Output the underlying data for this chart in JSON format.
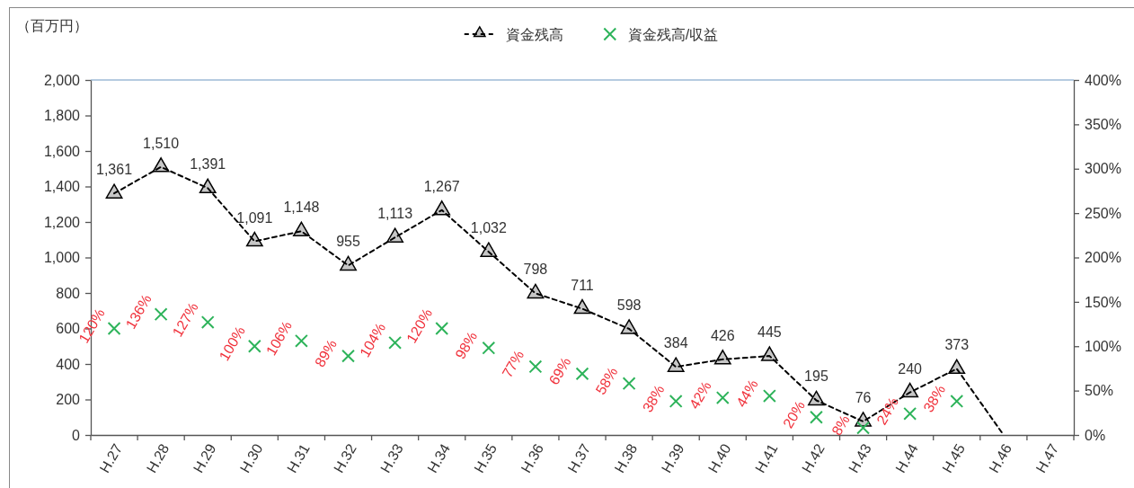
{
  "chart_data": {
    "type": "line",
    "ylabel": "（百万円）",
    "categories": [
      "H.27",
      "H.28",
      "H.29",
      "H.30",
      "H.31",
      "H.32",
      "H.33",
      "H.34",
      "H.35",
      "H.36",
      "H.37",
      "H.38",
      "H.39",
      "H.40",
      "H.41",
      "H.42",
      "H.43",
      "H.44",
      "H.45",
      "H.46",
      "H.47"
    ],
    "series": [
      {
        "name": "資金残高",
        "color": "#000000",
        "marker": "triangle",
        "line_style": "dashed",
        "values": [
          1361,
          1510,
          1391,
          1091,
          1148,
          955,
          1113,
          1267,
          1032,
          798,
          711,
          598,
          384,
          426,
          445,
          195,
          76,
          240,
          373,
          0,
          null
        ],
        "value_labels": [
          "1,361",
          "1,510",
          "1,391",
          "1,091",
          "1,148",
          "955",
          "1,113",
          "1,267",
          "1,032",
          "798",
          "711",
          "598",
          "384",
          "426",
          "445",
          "195",
          "76",
          "240",
          "373",
          null,
          null
        ]
      },
      {
        "name": "資金残高/収益",
        "type": "scatter",
        "axis": "y2",
        "color": "#2db35a",
        "marker": "cross",
        "values": [
          120,
          136,
          127,
          100,
          106,
          89,
          104,
          120,
          98,
          77,
          69,
          58,
          38,
          42,
          44,
          20,
          8,
          24,
          38,
          null,
          null
        ],
        "value_labels": [
          "120%",
          "136%",
          "127%",
          "100%",
          "106%",
          "89%",
          "104%",
          "120%",
          "98%",
          "77%",
          "69%",
          "58%",
          "38%",
          "42%",
          "44%",
          "20%",
          "8%",
          "24%",
          "38%",
          null,
          null
        ]
      }
    ],
    "ylim": [
      0,
      2000
    ],
    "yticks": [
      0,
      200,
      400,
      600,
      800,
      {
        "value": 1000,
        "label": "1,000"
      },
      {
        "value": 1200,
        "label": "1,200"
      },
      {
        "value": 1400,
        "label": "1,400"
      },
      {
        "value": 1600,
        "label": "1,600"
      },
      {
        "value": 1800,
        "label": "1,800"
      },
      {
        "value": 2000,
        "label": "2,000"
      }
    ],
    "y2lim": [
      0,
      400
    ],
    "y2ticks": [
      {
        "value": 0,
        "label": "0%"
      },
      {
        "value": 50,
        "label": "50%"
      },
      {
        "value": 100,
        "label": "100%"
      },
      {
        "value": 150,
        "label": "150%"
      },
      {
        "value": 200,
        "label": "200%"
      },
      {
        "value": 250,
        "label": "250%"
      },
      {
        "value": 300,
        "label": "300%"
      },
      {
        "value": 350,
        "label": "350%"
      },
      {
        "value": 400,
        "label": "400%"
      }
    ],
    "ref_lines": [
      {
        "axis": "y",
        "value": 2000,
        "color": "#9dbad6"
      }
    ],
    "legend": "top"
  }
}
